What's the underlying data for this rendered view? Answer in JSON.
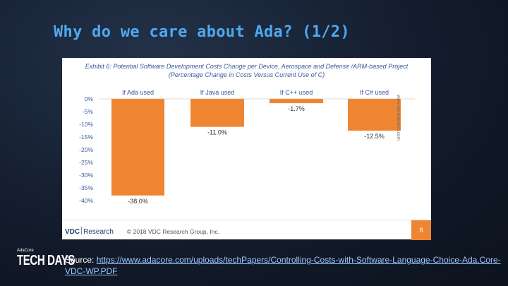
{
  "slide": {
    "title": "Why do we care about Ada? (1/2)",
    "source_label": "Source: ",
    "source_link": "https://www.adacore.com/uploads/techPapers/Controlling-Costs-with-Software-Language-Choice-Ada.Core-VDC-WP.PDF"
  },
  "brand": {
    "small": "AdaCore",
    "big": "TECH DAYS"
  },
  "exhibit": {
    "title_line1": "Exhibit 6: Potential Software Development Costs Change per Device, Aerospace and Defense /ARM-based Project",
    "title_line2": "(Percentage Change in Costs Versus Current Use of C)",
    "watermark": "www.vdcresearch.com",
    "logo_bold": "VDC",
    "logo_rest": "Research",
    "copyright": "© 2018 VDC Research Group, Inc.",
    "page_number": "8"
  },
  "chart_data": {
    "type": "bar",
    "categories": [
      "If Ada used",
      "If Java used",
      "If C++ used",
      "If C# used"
    ],
    "values": [
      -38.0,
      -11.0,
      -1.7,
      -12.5
    ],
    "value_labels": [
      "-38.0%",
      "-11.0%",
      "-1.7%",
      "-12.5%"
    ],
    "y_ticks": [
      "0%",
      "-5%",
      "-10%",
      "-15%",
      "-20%",
      "-25%",
      "-30%",
      "-35%",
      "-40%"
    ],
    "y_tick_values": [
      0,
      -5,
      -10,
      -15,
      -20,
      -25,
      -30,
      -35,
      -40
    ],
    "ylim": [
      -40,
      0
    ],
    "bar_color": "#f08531",
    "grid": false
  }
}
